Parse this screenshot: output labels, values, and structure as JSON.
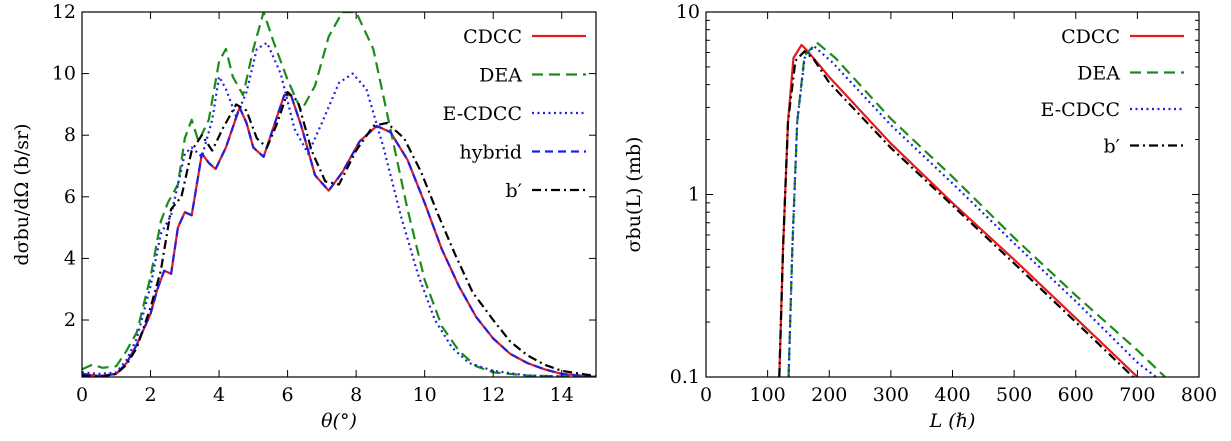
{
  "chart_data": [
    {
      "type": "line",
      "xlabel": "θ(°)",
      "ylabel": "dσbu/dΩ (b/sr)",
      "xlim": [
        0,
        15
      ],
      "ylim": [
        0.15,
        12
      ],
      "xticks": [
        "0",
        "2",
        "4",
        "6",
        "8",
        "10",
        "12",
        "14"
      ],
      "yticks": [
        "2",
        "4",
        "6",
        "8",
        "10",
        "12"
      ],
      "legend_position": "top-right",
      "series": [
        {
          "name": "CDCC",
          "color": "#e41a1c",
          "dash": "solid",
          "points": [
            [
              0,
              0.25
            ],
            [
              0.5,
              0.18
            ],
            [
              1,
              0.25
            ],
            [
              1.3,
              0.6
            ],
            [
              1.6,
              1.2
            ],
            [
              2,
              2.2
            ],
            [
              2.2,
              3.0
            ],
            [
              2.4,
              3.6
            ],
            [
              2.6,
              3.5
            ],
            [
              2.8,
              5.0
            ],
            [
              3.0,
              5.5
            ],
            [
              3.2,
              5.4
            ],
            [
              3.5,
              7.4
            ],
            [
              3.7,
              7.1
            ],
            [
              3.9,
              6.9
            ],
            [
              4.2,
              7.6
            ],
            [
              4.6,
              8.9
            ],
            [
              4.8,
              8.4
            ],
            [
              5.0,
              7.6
            ],
            [
              5.3,
              7.3
            ],
            [
              5.6,
              8.3
            ],
            [
              5.9,
              9.3
            ],
            [
              6.1,
              9.3
            ],
            [
              6.4,
              8.3
            ],
            [
              6.8,
              6.7
            ],
            [
              7.2,
              6.2
            ],
            [
              7.6,
              6.8
            ],
            [
              8.1,
              7.8
            ],
            [
              8.6,
              8.3
            ],
            [
              9.0,
              8.1
            ],
            [
              9.5,
              7.2
            ],
            [
              10,
              5.8
            ],
            [
              10.5,
              4.3
            ],
            [
              11,
              3.1
            ],
            [
              11.5,
              2.1
            ],
            [
              12,
              1.4
            ],
            [
              12.5,
              0.9
            ],
            [
              13,
              0.6
            ],
            [
              13.5,
              0.4
            ],
            [
              14,
              0.25
            ],
            [
              15,
              0.15
            ]
          ]
        },
        {
          "name": "DEA",
          "color": "#1a8c1a",
          "dash": "long-dash",
          "points": [
            [
              0,
              0.4
            ],
            [
              0.3,
              0.55
            ],
            [
              0.6,
              0.45
            ],
            [
              1,
              0.5
            ],
            [
              1.3,
              1.0
            ],
            [
              1.6,
              1.6
            ],
            [
              2.0,
              3.4
            ],
            [
              2.3,
              5.2
            ],
            [
              2.5,
              5.8
            ],
            [
              2.8,
              6.4
            ],
            [
              3.0,
              7.9
            ],
            [
              3.2,
              8.5
            ],
            [
              3.4,
              7.8
            ],
            [
              3.7,
              8.5
            ],
            [
              4.0,
              10.4
            ],
            [
              4.2,
              10.8
            ],
            [
              4.4,
              9.9
            ],
            [
              4.7,
              9.3
            ],
            [
              5.0,
              10.8
            ],
            [
              5.3,
              12.0
            ],
            [
              5.6,
              11.0
            ],
            [
              6.0,
              9.8
            ],
            [
              6.4,
              8.8
            ],
            [
              6.8,
              9.6
            ],
            [
              7.2,
              11.2
            ],
            [
              7.6,
              12.0
            ],
            [
              8.0,
              12.0
            ],
            [
              8.5,
              10.8
            ],
            [
              9.0,
              8.2
            ],
            [
              9.5,
              5.6
            ],
            [
              10,
              3.3
            ],
            [
              10.5,
              1.8
            ],
            [
              11,
              1.0
            ],
            [
              11.5,
              0.5
            ],
            [
              12,
              0.3
            ],
            [
              13,
              0.2
            ],
            [
              14,
              0.17
            ],
            [
              15,
              0.15
            ]
          ]
        },
        {
          "name": "E-CDCC",
          "color": "#1f1fe6",
          "dash": "dotted",
          "points": [
            [
              0,
              0.3
            ],
            [
              0.5,
              0.25
            ],
            [
              1,
              0.3
            ],
            [
              1.3,
              0.7
            ],
            [
              1.6,
              1.4
            ],
            [
              2.0,
              3.1
            ],
            [
              2.3,
              4.8
            ],
            [
              2.6,
              5.4
            ],
            [
              3.0,
              7.4
            ],
            [
              3.2,
              7.6
            ],
            [
              3.5,
              7.3
            ],
            [
              3.8,
              8.5
            ],
            [
              4.0,
              9.9
            ],
            [
              4.2,
              9.5
            ],
            [
              4.5,
              8.6
            ],
            [
              4.8,
              9.4
            ],
            [
              5.1,
              10.8
            ],
            [
              5.4,
              11.0
            ],
            [
              5.8,
              10.0
            ],
            [
              6.2,
              8.2
            ],
            [
              6.6,
              7.4
            ],
            [
              7.0,
              8.4
            ],
            [
              7.5,
              9.7
            ],
            [
              7.9,
              10.0
            ],
            [
              8.3,
              9.5
            ],
            [
              8.8,
              7.6
            ],
            [
              9.3,
              5.4
            ],
            [
              9.8,
              3.5
            ],
            [
              10.3,
              2.0
            ],
            [
              10.8,
              1.1
            ],
            [
              11.3,
              0.6
            ],
            [
              12,
              0.35
            ],
            [
              13,
              0.2
            ],
            [
              14,
              0.17
            ],
            [
              15,
              0.15
            ]
          ]
        },
        {
          "name": "hybrid",
          "color": "#1f1fe6",
          "dash": "dashed",
          "points": [
            [
              0,
              0.25
            ],
            [
              0.5,
              0.18
            ],
            [
              1,
              0.25
            ],
            [
              1.3,
              0.6
            ],
            [
              1.6,
              1.2
            ],
            [
              2,
              2.2
            ],
            [
              2.2,
              3.0
            ],
            [
              2.4,
              3.6
            ],
            [
              2.6,
              3.5
            ],
            [
              2.8,
              5.0
            ],
            [
              3.0,
              5.5
            ],
            [
              3.2,
              5.4
            ],
            [
              3.5,
              7.4
            ],
            [
              3.7,
              7.1
            ],
            [
              3.9,
              6.9
            ],
            [
              4.2,
              7.6
            ],
            [
              4.6,
              8.9
            ],
            [
              4.8,
              8.4
            ],
            [
              5.0,
              7.6
            ],
            [
              5.3,
              7.3
            ],
            [
              5.6,
              8.3
            ],
            [
              5.9,
              9.3
            ],
            [
              6.1,
              9.3
            ],
            [
              6.4,
              8.3
            ],
            [
              6.8,
              6.7
            ],
            [
              7.2,
              6.2
            ],
            [
              7.6,
              6.8
            ],
            [
              8.1,
              7.8
            ],
            [
              8.6,
              8.3
            ],
            [
              9.0,
              8.1
            ],
            [
              9.5,
              7.2
            ],
            [
              10,
              5.8
            ],
            [
              10.5,
              4.3
            ],
            [
              11,
              3.1
            ],
            [
              11.5,
              2.1
            ],
            [
              12,
              1.4
            ],
            [
              12.5,
              0.9
            ],
            [
              13,
              0.6
            ],
            [
              13.5,
              0.4
            ],
            [
              14,
              0.25
            ],
            [
              15,
              0.15
            ]
          ]
        },
        {
          "name": "b′",
          "color": "#000000",
          "dash": "dash-dot",
          "points": [
            [
              0,
              0.2
            ],
            [
              0.5,
              0.15
            ],
            [
              1,
              0.25
            ],
            [
              1.3,
              0.55
            ],
            [
              1.6,
              1.1
            ],
            [
              2,
              2.4
            ],
            [
              2.3,
              3.6
            ],
            [
              2.6,
              5.6
            ],
            [
              2.9,
              6.0
            ],
            [
              3.2,
              7.5
            ],
            [
              3.5,
              8.0
            ],
            [
              3.8,
              7.5
            ],
            [
              4.1,
              8.2
            ],
            [
              4.5,
              9.0
            ],
            [
              4.8,
              8.8
            ],
            [
              5.1,
              7.9
            ],
            [
              5.4,
              7.6
            ],
            [
              5.7,
              8.4
            ],
            [
              6.0,
              9.4
            ],
            [
              6.3,
              9.1
            ],
            [
              6.7,
              7.5
            ],
            [
              7.1,
              6.5
            ],
            [
              7.5,
              6.4
            ],
            [
              8.0,
              7.5
            ],
            [
              8.5,
              8.3
            ],
            [
              8.9,
              8.4
            ],
            [
              9.4,
              7.9
            ],
            [
              9.9,
              6.8
            ],
            [
              10.4,
              5.4
            ],
            [
              10.9,
              4.1
            ],
            [
              11.4,
              2.9
            ],
            [
              12,
              2.0
            ],
            [
              12.5,
              1.3
            ],
            [
              13,
              0.85
            ],
            [
              13.5,
              0.55
            ],
            [
              14,
              0.35
            ],
            [
              15,
              0.18
            ]
          ]
        }
      ]
    },
    {
      "type": "line",
      "xlabel": "L (ℏ)",
      "ylabel": "σbu(L) (mb)",
      "xlim": [
        0,
        800
      ],
      "ylim": [
        0.1,
        10
      ],
      "yscale": "log",
      "xticks": [
        "0",
        "100",
        "200",
        "300",
        "400",
        "500",
        "600",
        "700",
        "800"
      ],
      "yticks": [
        "0.1",
        "1",
        "10"
      ],
      "legend_position": "top-right",
      "series": [
        {
          "name": "CDCC",
          "color": "#e41a1c",
          "dash": "solid",
          "points": [
            [
              119,
              0.1
            ],
            [
              125,
              0.5
            ],
            [
              133,
              2.5
            ],
            [
              142,
              5.6
            ],
            [
              155,
              6.6
            ],
            [
              165,
              6.1
            ],
            [
              200,
              4.4
            ],
            [
              300,
              1.9
            ],
            [
              400,
              0.9
            ],
            [
              500,
              0.44
            ],
            [
              600,
              0.21
            ],
            [
              700,
              0.1
            ]
          ]
        },
        {
          "name": "DEA",
          "color": "#1a8c1a",
          "dash": "long-dash",
          "points": [
            [
              134,
              0.1
            ],
            [
              140,
              0.5
            ],
            [
              148,
              2.5
            ],
            [
              160,
              5.8
            ],
            [
              180,
              6.8
            ],
            [
              210,
              5.6
            ],
            [
              300,
              2.6
            ],
            [
              400,
              1.25
            ],
            [
              500,
              0.58
            ],
            [
              600,
              0.28
            ],
            [
              700,
              0.14
            ],
            [
              745,
              0.1
            ]
          ]
        },
        {
          "name": "E-CDCC",
          "color": "#1f1fe6",
          "dash": "dotted",
          "points": [
            [
              134,
              0.1
            ],
            [
              140,
              0.5
            ],
            [
              148,
              2.5
            ],
            [
              160,
              5.6
            ],
            [
              175,
              6.5
            ],
            [
              205,
              5.3
            ],
            [
              300,
              2.4
            ],
            [
              400,
              1.15
            ],
            [
              500,
              0.54
            ],
            [
              600,
              0.26
            ],
            [
              700,
              0.12
            ],
            [
              730,
              0.1
            ]
          ]
        },
        {
          "name": "b′",
          "color": "#000000",
          "dash": "dash-dot",
          "points": [
            [
              119,
              0.1
            ],
            [
              125,
              0.5
            ],
            [
              133,
              2.5
            ],
            [
              145,
              5.4
            ],
            [
              160,
              6.1
            ],
            [
              175,
              5.5
            ],
            [
              200,
              4.1
            ],
            [
              300,
              1.8
            ],
            [
              400,
              0.87
            ],
            [
              500,
              0.42
            ],
            [
              600,
              0.2
            ],
            [
              700,
              0.095
            ]
          ]
        }
      ]
    }
  ]
}
